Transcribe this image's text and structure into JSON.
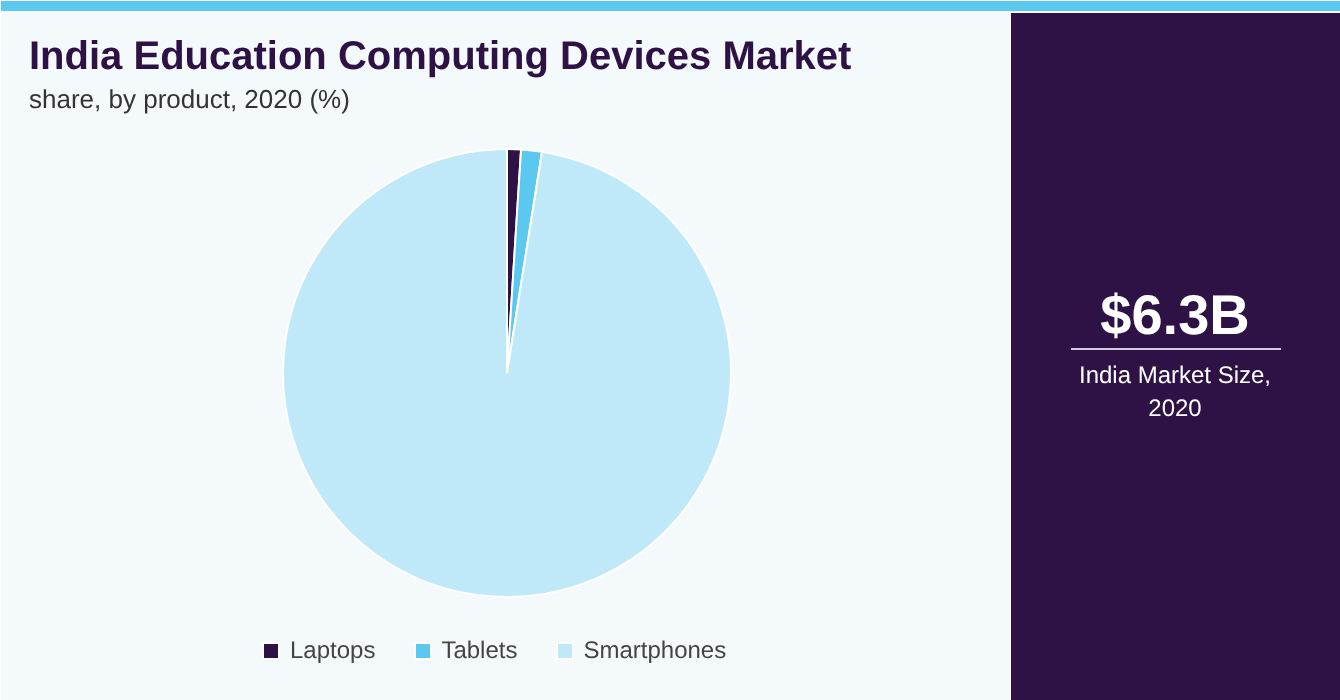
{
  "chart_data": {
    "type": "pie",
    "title": "India Education Computing Devices Market",
    "subtitle": "share, by product, 2020 (%)",
    "categories": [
      "Laptops",
      "Tablets",
      "Smartphones"
    ],
    "values": [
      1,
      1.5,
      97.5
    ],
    "colors": [
      "#2e1245",
      "#5bc8f0",
      "#bfe9f9"
    ],
    "legend": "bottom",
    "annotations": [
      "$6.3B",
      "India Market Size, 2020"
    ]
  }
}
